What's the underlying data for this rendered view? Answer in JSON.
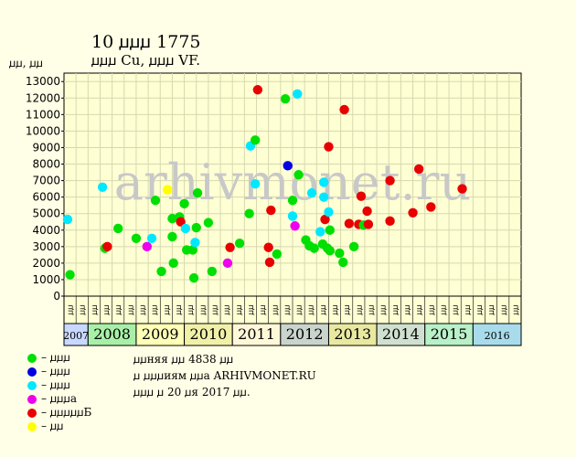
{
  "title": "10 ꙡꙡꙡ 1775",
  "subtitle": "ꙡꙡꙡ Cu, ꙡꙡꙡ VF.",
  "y_axis_label": "ꙡꙡ, ꙡꙡ",
  "watermark": "arhivmonet.ru",
  "notes": [
    "ꙡꙡняя ꙡꙡ 4838 ꙡꙡ",
    "ꙡ ꙡꙡꙡиям ꙡꙡа ARHIVMONET.RU",
    "ꙡꙡꙡ ꙡ 20 ꙡя 2017 ꙡꙡ."
  ],
  "colors": {
    "background": "#fffee6",
    "plot_background": "#ffffd4",
    "green": "#00e000",
    "blue": "#0000e0",
    "cyan": "#00e8ff",
    "magenta": "#ee00ee",
    "red": "#e80000",
    "yellow": "#ffff00",
    "watermark": "#c8c8c8"
  },
  "legend": [
    {
      "color": "#00e000",
      "label": "– ꙡꙡꙡ"
    },
    {
      "color": "#0000e0",
      "label": "– ꙡꙡꙡ"
    },
    {
      "color": "#00e8ff",
      "label": "– ꙡꙡꙡ"
    },
    {
      "color": "#ee00ee",
      "label": "– ꙡꙡꙡа"
    },
    {
      "color": "#e80000",
      "label": "– ꙡꙡꙡꙡꙡБ"
    },
    {
      "color": "#ffff00",
      "label": "– ꙡꙡ"
    }
  ],
  "chart_data": {
    "type": "scatter",
    "title": "10 ꙡꙡꙡ 1775",
    "ylabel": "ꙡꙡ, ꙡꙡ",
    "ylim": [
      0,
      13500
    ],
    "yticks": [
      0,
      1000,
      2000,
      3000,
      4000,
      5000,
      6000,
      7000,
      8000,
      9000,
      10000,
      11000,
      12000,
      13000
    ],
    "grid": true,
    "halves": [
      "ꙡꙡ",
      "ꙡꙡ",
      "ꙡꙡ",
      "ꙡꙡ",
      "ꙡꙡ",
      "ꙡꙡ",
      "ꙡꙡ",
      "ꙡꙡ",
      "ꙡꙡ",
      "ꙡꙡ",
      "ꙡꙡ",
      "ꙡꙡ",
      "ꙡꙡ",
      "ꙡꙡ",
      "ꙡꙡ",
      "ꙡꙡ",
      "ꙡꙡ",
      "ꙡꙡ",
      "ꙡꙡ",
      "ꙡꙡ",
      "ꙡꙡ",
      "ꙡꙡ",
      "ꙡꙡ",
      "ꙡꙡ",
      "ꙡꙡ",
      "ꙡꙡ",
      "ꙡꙡ",
      "ꙡꙡ",
      "ꙡꙡ",
      "ꙡꙡ",
      "ꙡꙡ",
      "ꙡꙡ",
      "ꙡꙡ",
      "ꙡꙡ",
      "ꙡꙡ",
      "ꙡꙡ",
      "ꙡꙡ",
      "ꙡꙡ"
    ],
    "years": [
      {
        "label": "2007",
        "color": "#c8d8ff",
        "small": true
      },
      {
        "label": "2008",
        "color": "#a8f0a8"
      },
      {
        "label": "2009",
        "color": "#ffffb8"
      },
      {
        "label": "2010",
        "color": "#f0f0a8"
      },
      {
        "label": "2011",
        "color": "#fff8d8"
      },
      {
        "label": "2012",
        "color": "#c8d4cc"
      },
      {
        "label": "2013",
        "color": "#e8e8a0"
      },
      {
        "label": "2014",
        "color": "#d0e0d0"
      },
      {
        "label": "2015",
        "color": "#b8f0c8"
      },
      {
        "label": "2016",
        "color": "#a8dcec",
        "small": true
      }
    ],
    "points": [
      {
        "x": 0.3,
        "y": 4650,
        "c": "cyan"
      },
      {
        "x": 0.5,
        "y": 1300,
        "c": "green"
      },
      {
        "x": 3.2,
        "y": 6600,
        "c": "cyan"
      },
      {
        "x": 3.4,
        "y": 2900,
        "c": "green"
      },
      {
        "x": 3.6,
        "y": 3000,
        "c": "red"
      },
      {
        "x": 4.5,
        "y": 4100,
        "c": "green"
      },
      {
        "x": 6.0,
        "y": 3500,
        "c": "green"
      },
      {
        "x": 6.9,
        "y": 3000,
        "c": "magenta"
      },
      {
        "x": 7.3,
        "y": 3500,
        "c": "cyan"
      },
      {
        "x": 7.6,
        "y": 5800,
        "c": "green"
      },
      {
        "x": 8.1,
        "y": 1500,
        "c": "green"
      },
      {
        "x": 8.6,
        "y": 6450,
        "c": "yellow"
      },
      {
        "x": 9.0,
        "y": 3600,
        "c": "green"
      },
      {
        "x": 9.0,
        "y": 4700,
        "c": "green"
      },
      {
        "x": 9.1,
        "y": 2000,
        "c": "green"
      },
      {
        "x": 9.6,
        "y": 4800,
        "c": "green"
      },
      {
        "x": 9.7,
        "y": 4500,
        "c": "red"
      },
      {
        "x": 10.0,
        "y": 5600,
        "c": "green"
      },
      {
        "x": 10.1,
        "y": 4100,
        "c": "cyan"
      },
      {
        "x": 10.2,
        "y": 2800,
        "c": "green"
      },
      {
        "x": 10.7,
        "y": 2800,
        "c": "green"
      },
      {
        "x": 10.8,
        "y": 1100,
        "c": "green"
      },
      {
        "x": 10.9,
        "y": 3250,
        "c": "cyan"
      },
      {
        "x": 11.0,
        "y": 4150,
        "c": "green"
      },
      {
        "x": 11.1,
        "y": 6250,
        "c": "green"
      },
      {
        "x": 12.0,
        "y": 4450,
        "c": "green"
      },
      {
        "x": 12.3,
        "y": 1500,
        "c": "green"
      },
      {
        "x": 13.6,
        "y": 2000,
        "c": "magenta"
      },
      {
        "x": 13.8,
        "y": 2950,
        "c": "red"
      },
      {
        "x": 14.6,
        "y": 3200,
        "c": "green"
      },
      {
        "x": 15.4,
        "y": 5000,
        "c": "green"
      },
      {
        "x": 15.5,
        "y": 9100,
        "c": "cyan"
      },
      {
        "x": 15.9,
        "y": 6800,
        "c": "cyan"
      },
      {
        "x": 15.9,
        "y": 9450,
        "c": "green"
      },
      {
        "x": 16.1,
        "y": 12500,
        "c": "red"
      },
      {
        "x": 17.0,
        "y": 2950,
        "c": "red"
      },
      {
        "x": 17.1,
        "y": 2050,
        "c": "red"
      },
      {
        "x": 17.2,
        "y": 5200,
        "c": "red"
      },
      {
        "x": 17.7,
        "y": 2550,
        "c": "green"
      },
      {
        "x": 18.4,
        "y": 11950,
        "c": "green"
      },
      {
        "x": 18.6,
        "y": 7900,
        "c": "blue"
      },
      {
        "x": 19.0,
        "y": 4850,
        "c": "cyan"
      },
      {
        "x": 19.0,
        "y": 5800,
        "c": "green"
      },
      {
        "x": 19.2,
        "y": 4250,
        "c": "magenta"
      },
      {
        "x": 19.4,
        "y": 12250,
        "c": "cyan"
      },
      {
        "x": 19.5,
        "y": 7350,
        "c": "green"
      },
      {
        "x": 20.1,
        "y": 3400,
        "c": "green"
      },
      {
        "x": 20.4,
        "y": 3050,
        "c": "green"
      },
      {
        "x": 20.6,
        "y": 6250,
        "c": "cyan"
      },
      {
        "x": 20.8,
        "y": 2900,
        "c": "green"
      },
      {
        "x": 21.3,
        "y": 3900,
        "c": "cyan"
      },
      {
        "x": 21.5,
        "y": 3150,
        "c": "green"
      },
      {
        "x": 21.6,
        "y": 6000,
        "c": "cyan"
      },
      {
        "x": 21.6,
        "y": 6900,
        "c": "cyan"
      },
      {
        "x": 21.7,
        "y": 4650,
        "c": "red"
      },
      {
        "x": 21.9,
        "y": 2900,
        "c": "green"
      },
      {
        "x": 22.0,
        "y": 9050,
        "c": "red"
      },
      {
        "x": 22.0,
        "y": 5100,
        "c": "cyan"
      },
      {
        "x": 22.1,
        "y": 4000,
        "c": "green"
      },
      {
        "x": 22.1,
        "y": 2750,
        "c": "green"
      },
      {
        "x": 22.9,
        "y": 2600,
        "c": "green"
      },
      {
        "x": 23.2,
        "y": 2050,
        "c": "green"
      },
      {
        "x": 23.3,
        "y": 11300,
        "c": "red"
      },
      {
        "x": 23.7,
        "y": 4400,
        "c": "red"
      },
      {
        "x": 24.1,
        "y": 3000,
        "c": "green"
      },
      {
        "x": 24.5,
        "y": 4350,
        "c": "red"
      },
      {
        "x": 24.7,
        "y": 6050,
        "c": "red"
      },
      {
        "x": 24.9,
        "y": 4300,
        "c": "green"
      },
      {
        "x": 25.2,
        "y": 5150,
        "c": "red"
      },
      {
        "x": 25.3,
        "y": 4350,
        "c": "red"
      },
      {
        "x": 27.1,
        "y": 4550,
        "c": "red"
      },
      {
        "x": 27.1,
        "y": 7000,
        "c": "red"
      },
      {
        "x": 29.0,
        "y": 5050,
        "c": "red"
      },
      {
        "x": 29.5,
        "y": 7700,
        "c": "red"
      },
      {
        "x": 30.5,
        "y": 5400,
        "c": "red"
      },
      {
        "x": 33.1,
        "y": 6500,
        "c": "red"
      }
    ]
  }
}
